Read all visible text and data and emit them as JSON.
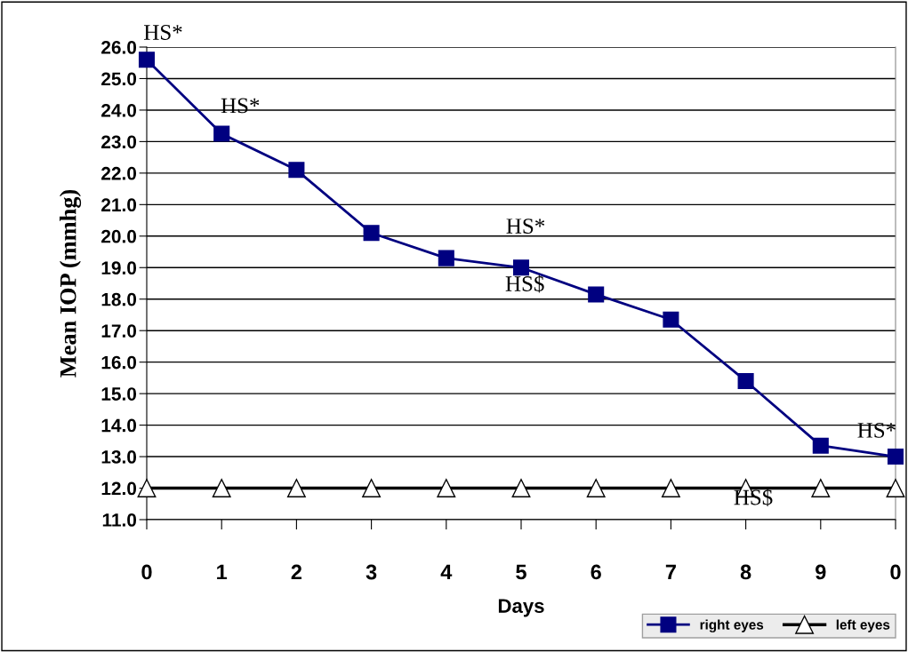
{
  "chart_data": {
    "type": "line",
    "xlabel": "Days",
    "ylabel": "Mean IOP (mmhg)",
    "categories": [
      "0",
      "1",
      "2",
      "3",
      "4",
      "5",
      "6",
      "7",
      "8",
      "9",
      "0"
    ],
    "series": [
      {
        "name": "right eyes",
        "color": "#000080",
        "marker": "square",
        "values": [
          25.6,
          23.25,
          22.1,
          20.1,
          19.3,
          19.0,
          18.15,
          17.35,
          15.4,
          13.35,
          13.0
        ]
      },
      {
        "name": "left eyes",
        "color": "#000000",
        "marker": "triangle",
        "values": [
          12.0,
          12.0,
          12.0,
          12.0,
          12.0,
          12.0,
          12.0,
          12.0,
          12.0,
          12.0,
          12.0
        ]
      }
    ],
    "ylim": [
      11,
      26
    ],
    "yticks": [
      {
        "value": 11,
        "label": "11.0"
      },
      {
        "value": 12,
        "label": "12.0"
      },
      {
        "value": 13,
        "label": "13.0"
      },
      {
        "value": 14,
        "label": "14.0"
      },
      {
        "value": 15,
        "label": "15.0"
      },
      {
        "value": 16,
        "label": "16.0"
      },
      {
        "value": 17,
        "label": "17.0"
      },
      {
        "value": 18,
        "label": "18.0"
      },
      {
        "value": 19,
        "label": "19.0"
      },
      {
        "value": 20,
        "label": "20.0"
      },
      {
        "value": 21,
        "label": "21.0"
      },
      {
        "value": 22,
        "label": "22.0"
      },
      {
        "value": 23,
        "label": "23.0"
      },
      {
        "value": 24,
        "label": "24.0"
      },
      {
        "value": 25,
        "label": "25.0"
      },
      {
        "value": 26,
        "label": "26.0"
      }
    ],
    "annotations": [
      "HS*",
      "HS*",
      "HS*",
      "HS$",
      "HS*",
      "HS$"
    ],
    "grid": "y",
    "legend": "bottom right",
    "line_style": "solid"
  }
}
